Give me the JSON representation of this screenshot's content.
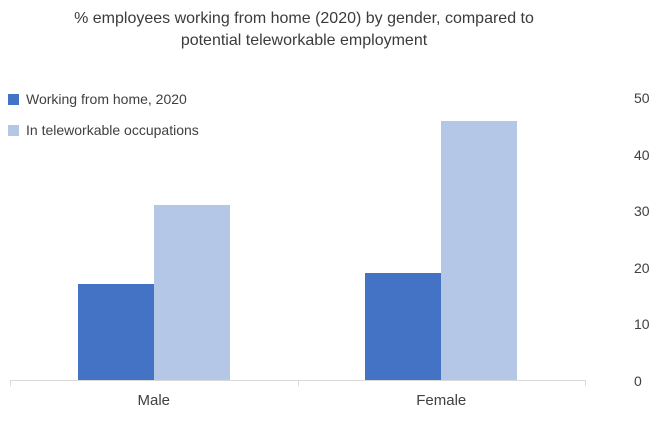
{
  "chart_data": {
    "type": "bar",
    "title": "% employees working from home (2020) by gender, compared to potential teleworkable employment",
    "categories": [
      "Male",
      "Female"
    ],
    "series": [
      {
        "name": "Working from home, 2020",
        "color": "#4472C4",
        "values": [
          17,
          19
        ]
      },
      {
        "name": "In teleworkable occupations",
        "color": "#B4C7E7",
        "values": [
          31,
          46
        ]
      }
    ],
    "y_axis": {
      "min": 0,
      "max": 50,
      "ticks": [
        0,
        10,
        20,
        30,
        40,
        50
      ],
      "position": "right"
    },
    "legend_position": "top-left",
    "grid": false,
    "axis_line_color": "#d9d9d9",
    "text_color": "#404040"
  }
}
